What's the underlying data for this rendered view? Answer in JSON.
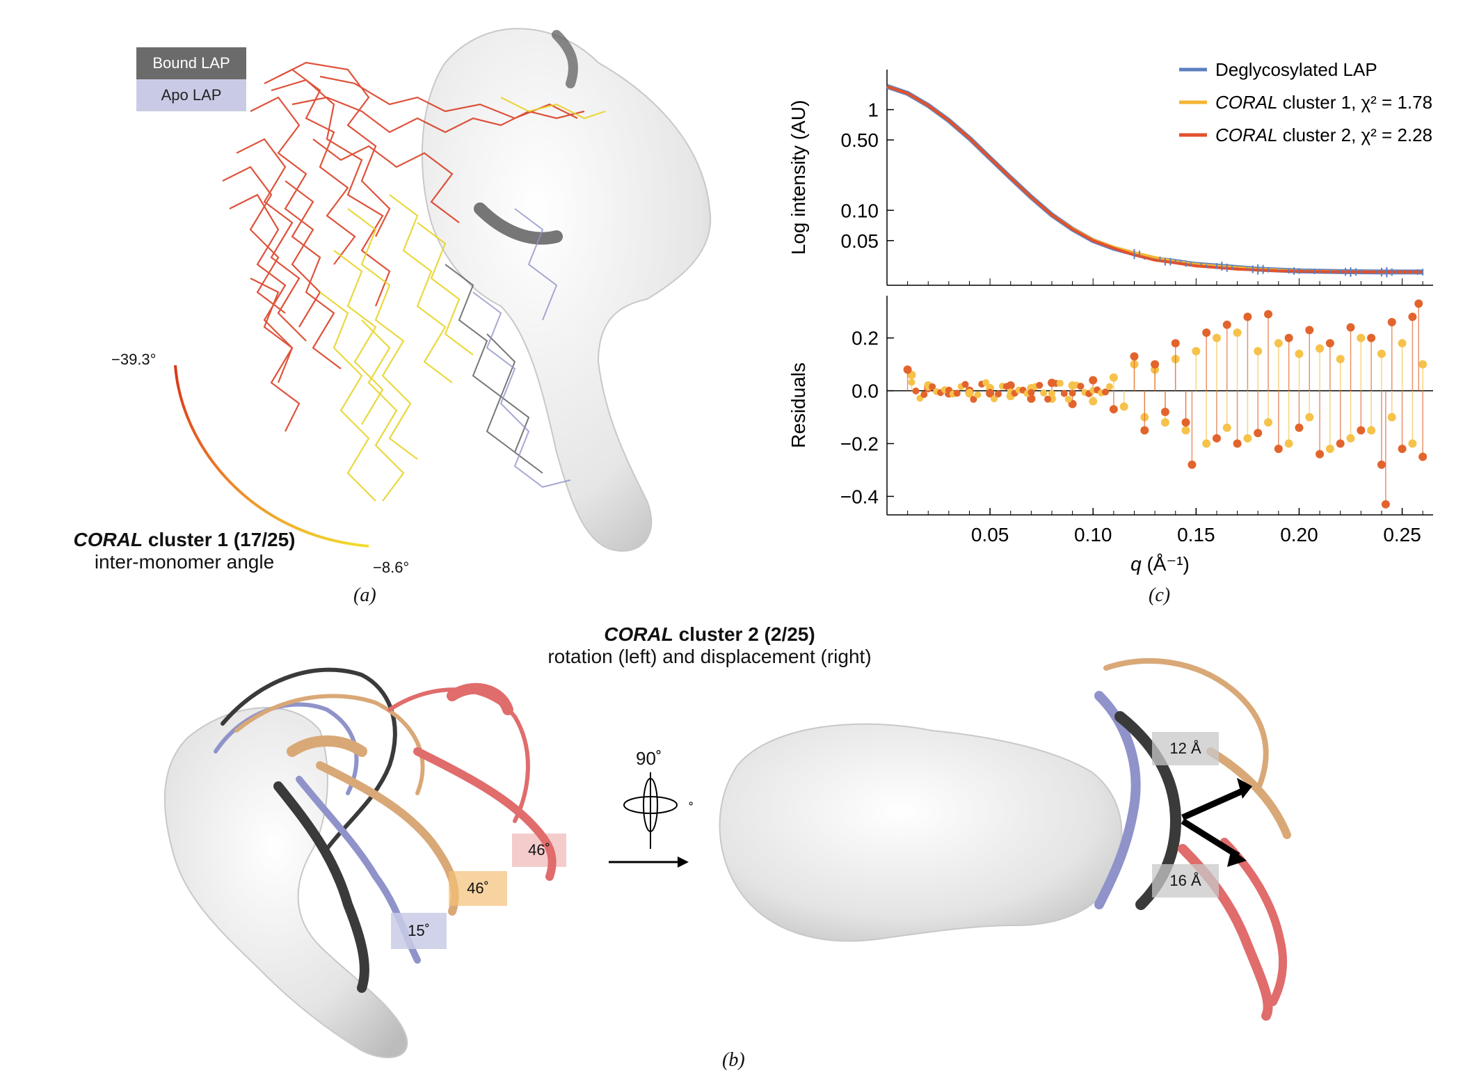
{
  "panel_a": {
    "legend": {
      "bound": "Bound LAP",
      "apo": "Apo LAP"
    },
    "angle_high": "−39.3°",
    "angle_low": "−8.6°",
    "caption_bold_italic": "CORAL",
    "caption_bold_rest": " cluster 1 (17/25)",
    "caption_sub": "inter-monomer angle",
    "letter": "(a)"
  },
  "panel_b": {
    "caption_bold_italic": "CORAL",
    "caption_bold_rest": " cluster 2 (2/25)",
    "caption_sub": "rotation (left) and displacement (right)",
    "rotation_label": "90˚",
    "small_degree": "˚",
    "angle_tags": [
      "46˚",
      "46˚",
      "15˚"
    ],
    "distance_tags": [
      "12 Å",
      "16 Å"
    ],
    "letter": "(b)"
  },
  "panel_c": {
    "letter": "(c)"
  },
  "colors": {
    "bound": "#6b6b6b",
    "apo": "#c9cbe6",
    "red": "#d93418",
    "yellow": "#e8d42a",
    "blue": "#5b7fbf",
    "orange": "#f3a733",
    "salmon": "#e06c6c",
    "tan": "#d9a877"
  },
  "chart_data": [
    {
      "type": "line",
      "xlabel": "",
      "ylabel": "Log intensity (AU)",
      "yscale": "log",
      "ylim": [
        0.018,
        2.5
      ],
      "xlim": [
        0.0,
        0.265
      ],
      "yticks": [
        "1",
        "0.50",
        "0.10",
        "0.05"
      ],
      "ytick_values": [
        1,
        0.5,
        0.1,
        0.05
      ],
      "legend": "top-right",
      "series": [
        {
          "name": "Deglycosylated LAP",
          "color": "#5b7fbf",
          "x": [
            0.0,
            0.01,
            0.02,
            0.03,
            0.04,
            0.05,
            0.06,
            0.07,
            0.08,
            0.09,
            0.1,
            0.11,
            0.12,
            0.13,
            0.14,
            0.15,
            0.16,
            0.17,
            0.18,
            0.19,
            0.2,
            0.21,
            0.22,
            0.23,
            0.24,
            0.25,
            0.26
          ],
          "y": [
            1.7,
            1.45,
            1.1,
            0.78,
            0.52,
            0.33,
            0.21,
            0.135,
            0.09,
            0.065,
            0.05,
            0.042,
            0.037,
            0.033,
            0.031,
            0.029,
            0.028,
            0.027,
            0.026,
            0.0255,
            0.025,
            0.0248,
            0.0246,
            0.0245,
            0.0244,
            0.0244,
            0.0244
          ]
        },
        {
          "name_italic": "CORAL",
          "name": " cluster 1, χ² = 1.78",
          "color": "#f3b533",
          "x": [
            0.0,
            0.01,
            0.02,
            0.03,
            0.04,
            0.05,
            0.06,
            0.07,
            0.08,
            0.09,
            0.1,
            0.11,
            0.12,
            0.13,
            0.14,
            0.15,
            0.16,
            0.17,
            0.18,
            0.19,
            0.2,
            0.21,
            0.22,
            0.23,
            0.24,
            0.25,
            0.26
          ],
          "y": [
            1.7,
            1.45,
            1.1,
            0.78,
            0.52,
            0.33,
            0.21,
            0.135,
            0.09,
            0.066,
            0.051,
            0.043,
            0.038,
            0.034,
            0.031,
            0.029,
            0.028,
            0.027,
            0.026,
            0.0255,
            0.025,
            0.0248,
            0.0246,
            0.0245,
            0.0244,
            0.0244,
            0.0244
          ]
        },
        {
          "name_italic": "CORAL",
          "name": " cluster 2, χ² = 2.28",
          "color": "#e2502c",
          "x": [
            0.0,
            0.01,
            0.02,
            0.03,
            0.04,
            0.05,
            0.06,
            0.07,
            0.08,
            0.09,
            0.1,
            0.11,
            0.12,
            0.13,
            0.14,
            0.15,
            0.16,
            0.17,
            0.18,
            0.19,
            0.2,
            0.21,
            0.22,
            0.23,
            0.24,
            0.25,
            0.26
          ],
          "y": [
            1.7,
            1.45,
            1.1,
            0.78,
            0.52,
            0.33,
            0.21,
            0.135,
            0.09,
            0.065,
            0.05,
            0.042,
            0.036,
            0.032,
            0.03,
            0.028,
            0.027,
            0.026,
            0.0255,
            0.025,
            0.0248,
            0.0246,
            0.0245,
            0.0244,
            0.0244,
            0.0244,
            0.0244
          ]
        }
      ]
    },
    {
      "type": "scatter",
      "xlabel_italic": "q",
      "xlabel": " (Å⁻¹)",
      "ylabel": "Residuals",
      "xlim": [
        0.0,
        0.265
      ],
      "ylim": [
        -0.47,
        0.36
      ],
      "xticks": [
        "0.05",
        "0.10",
        "0.15",
        "0.20",
        "0.25"
      ],
      "xtick_values": [
        0.05,
        0.1,
        0.15,
        0.2,
        0.25
      ],
      "yticks": [
        "0.2",
        "0.0",
        "−0.2",
        "−0.4"
      ],
      "ytick_values": [
        0.2,
        0.0,
        -0.2,
        -0.4
      ],
      "series": [
        {
          "name": "cluster 1 residuals",
          "color": "#f6c24a",
          "x": [
            0.012,
            0.02,
            0.03,
            0.04,
            0.05,
            0.06,
            0.07,
            0.08,
            0.09,
            0.1,
            0.11,
            0.115,
            0.12,
            0.125,
            0.13,
            0.135,
            0.14,
            0.145,
            0.15,
            0.155,
            0.16,
            0.165,
            0.17,
            0.175,
            0.18,
            0.185,
            0.19,
            0.195,
            0.2,
            0.205,
            0.21,
            0.215,
            0.22,
            0.225,
            0.23,
            0.235,
            0.24,
            0.245,
            0.25,
            0.255,
            0.26
          ],
          "y": [
            0.06,
            0.02,
            0.0,
            -0.01,
            0.01,
            -0.02,
            0.01,
            -0.03,
            0.02,
            -0.04,
            0.05,
            -0.06,
            0.1,
            -0.1,
            0.08,
            -0.12,
            0.12,
            -0.15,
            0.15,
            -0.2,
            0.2,
            -0.14,
            0.22,
            -0.18,
            0.15,
            -0.12,
            0.18,
            -0.2,
            0.14,
            -0.1,
            0.16,
            -0.22,
            0.12,
            -0.18,
            0.2,
            -0.15,
            0.14,
            -0.1,
            0.18,
            -0.2,
            0.1
          ]
        },
        {
          "name": "cluster 2 residuals",
          "color": "#e2642c",
          "x": [
            0.01,
            0.02,
            0.03,
            0.04,
            0.05,
            0.06,
            0.07,
            0.08,
            0.09,
            0.1,
            0.11,
            0.12,
            0.125,
            0.13,
            0.135,
            0.14,
            0.145,
            0.148,
            0.155,
            0.16,
            0.165,
            0.17,
            0.175,
            0.18,
            0.185,
            0.19,
            0.195,
            0.2,
            0.205,
            0.21,
            0.215,
            0.22,
            0.225,
            0.23,
            0.235,
            0.24,
            0.242,
            0.245,
            0.25,
            0.255,
            0.258,
            0.26
          ],
          "y": [
            0.08,
            0.01,
            -0.01,
            0.0,
            -0.01,
            0.02,
            -0.03,
            0.03,
            -0.05,
            0.04,
            -0.07,
            0.13,
            -0.15,
            0.1,
            -0.08,
            0.18,
            -0.12,
            -0.28,
            0.22,
            -0.18,
            0.25,
            -0.2,
            0.28,
            -0.16,
            0.29,
            -0.22,
            0.2,
            -0.14,
            0.23,
            -0.24,
            0.18,
            -0.2,
            0.24,
            -0.15,
            0.2,
            -0.28,
            -0.43,
            0.26,
            -0.22,
            0.28,
            0.33,
            -0.25
          ]
        }
      ]
    }
  ]
}
